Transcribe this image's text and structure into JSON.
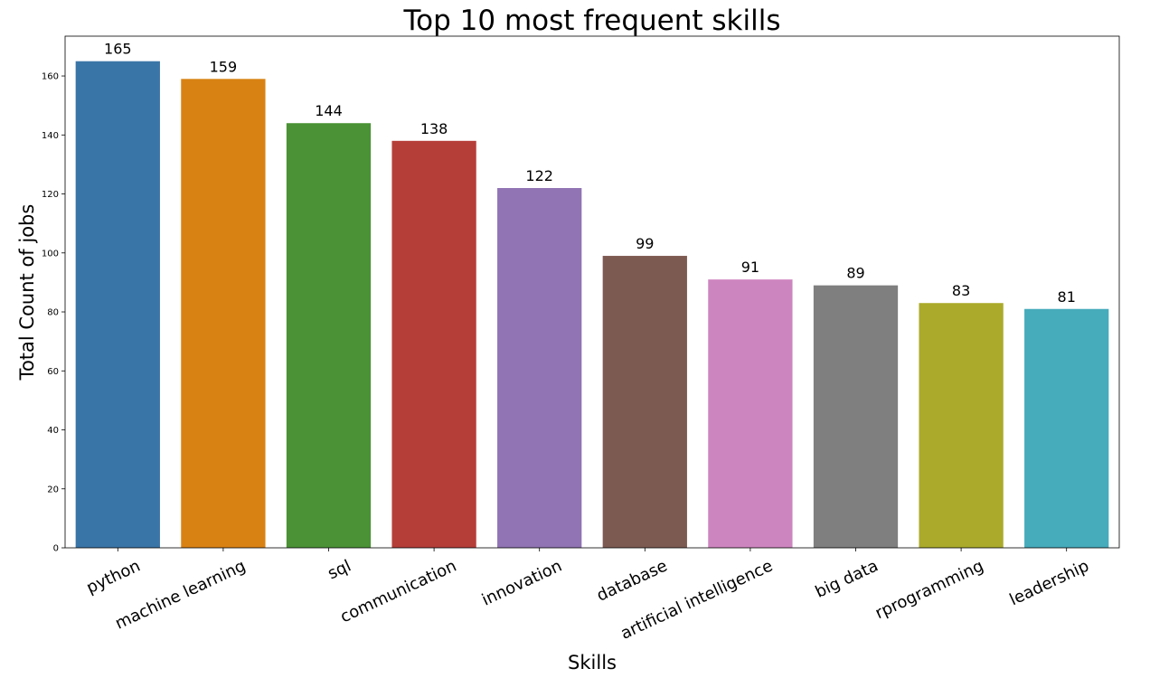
{
  "chart_data": {
    "type": "bar",
    "title": "Top 10 most frequent skills",
    "xlabel": "Skills",
    "ylabel": "Total Count of jobs",
    "categories": [
      "python",
      "machine learning",
      "sql",
      "communication",
      "innovation",
      "database",
      "artificial intelligence",
      "big data",
      "rprogramming",
      "leadership"
    ],
    "values": [
      165,
      159,
      144,
      138,
      122,
      99,
      91,
      89,
      83,
      81
    ],
    "colors": [
      "#3a75a7",
      "#d98214",
      "#4a9235",
      "#b53e39",
      "#9074b3",
      "#7d5a51",
      "#cd85bf",
      "#7f7f7f",
      "#abaa2a",
      "#46abbb"
    ],
    "data_labels": [
      "165",
      "159",
      "144",
      "138",
      "122",
      "99",
      "91",
      "89",
      "83",
      "81"
    ],
    "yticks": [
      0,
      20,
      40,
      60,
      80,
      100,
      120,
      140,
      160
    ],
    "ytick_labels": [
      "0",
      "20",
      "40",
      "60",
      "80",
      "100",
      "120",
      "140",
      "160"
    ],
    "ylim": [
      0,
      173.5
    ],
    "grid": false,
    "legend": "none"
  }
}
